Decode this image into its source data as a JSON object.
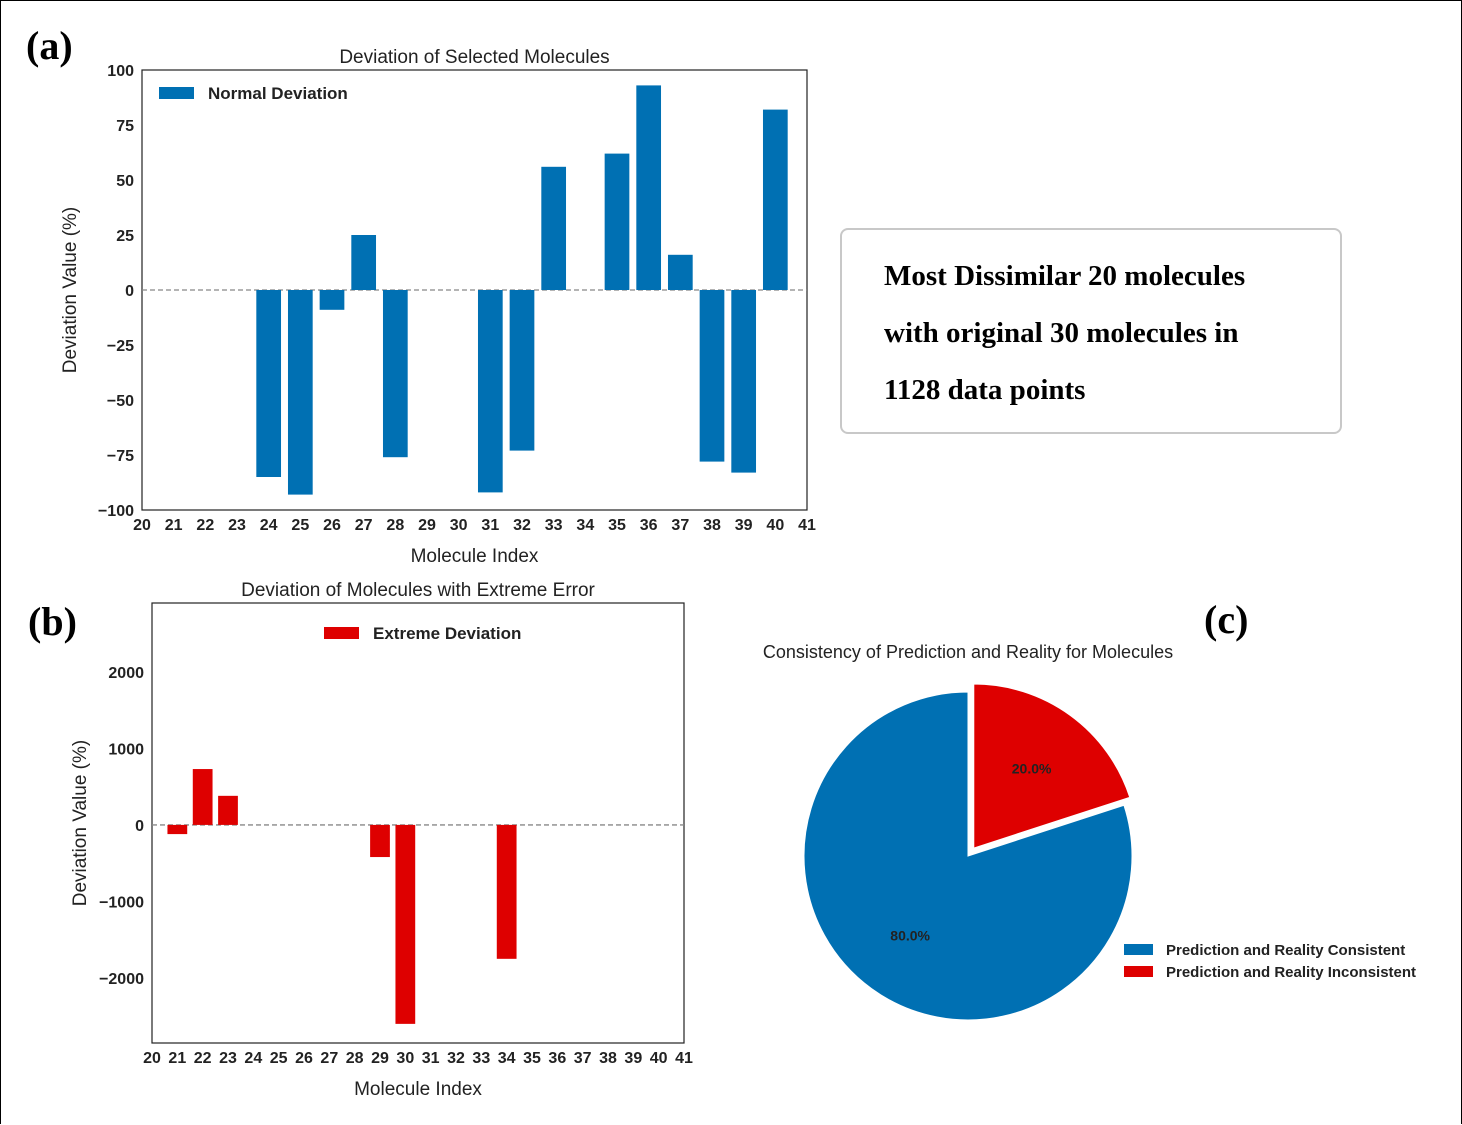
{
  "panels": {
    "a_label": "(a)",
    "b_label": "(b)",
    "c_label": "(c)"
  },
  "note_box": {
    "lines": [
      "Most Dissimilar 20 molecules",
      "with original 30 molecules in",
      "1128 data points"
    ]
  },
  "colors": {
    "normal": "#0070b3",
    "extreme": "#de0000",
    "zero_line": "#888888"
  },
  "chart_data": [
    {
      "type": "bar",
      "title": "Deviation of Selected Molecules",
      "xlabel": "Molecule Index",
      "ylabel": "Deviation Value (%)",
      "ylim": [
        -100,
        100
      ],
      "yticks": [
        "100",
        "75",
        "50",
        "25",
        "0",
        "−25",
        "−50",
        "−75",
        "−100"
      ],
      "ytick_values": [
        100,
        75,
        50,
        25,
        0,
        -25,
        -50,
        -75,
        -100
      ],
      "xticks": [
        "20",
        "21",
        "22",
        "23",
        "24",
        "25",
        "26",
        "27",
        "28",
        "29",
        "30",
        "31",
        "32",
        "33",
        "34",
        "35",
        "36",
        "37",
        "38",
        "39",
        "40",
        "41"
      ],
      "xlim": [
        20,
        41
      ],
      "legend": "top-left",
      "grid": false,
      "series": [
        {
          "name": "Normal Deviation",
          "color": "#0070b3",
          "x": [
            24,
            25,
            26,
            27,
            28,
            31,
            32,
            33,
            35,
            36,
            37,
            38,
            39,
            40
          ],
          "values": [
            -85,
            -93,
            -9,
            25,
            -76,
            -92,
            -73,
            56,
            62,
            93,
            16,
            -78,
            -83,
            82
          ]
        }
      ]
    },
    {
      "type": "bar",
      "title": "Deviation of Molecules with Extreme Error",
      "xlabel": "Molecule Index",
      "ylabel": "Deviation Value (%)",
      "ylim": [
        -2850,
        2900
      ],
      "yticks": [
        "2000",
        "1000",
        "0",
        "−1000",
        "−2000"
      ],
      "ytick_values": [
        2000,
        1000,
        0,
        -1000,
        -2000
      ],
      "xticks": [
        "20",
        "21",
        "22",
        "23",
        "24",
        "25",
        "26",
        "27",
        "28",
        "29",
        "30",
        "31",
        "32",
        "33",
        "34",
        "35",
        "36",
        "37",
        "38",
        "39",
        "40",
        "41"
      ],
      "xlim": [
        20,
        41
      ],
      "legend": "top-center",
      "grid": false,
      "series": [
        {
          "name": "Extreme Deviation",
          "color": "#de0000",
          "x": [
            21,
            22,
            23,
            29,
            30,
            34
          ],
          "values": [
            -120,
            730,
            380,
            -420,
            -2600,
            -1750
          ]
        }
      ]
    },
    {
      "type": "pie",
      "title": "Consistency of Prediction and Reality for Molecules",
      "legend": "bottom-right",
      "slices": [
        {
          "label": "Prediction and Reality Consistent",
          "value": 80.0,
          "pct_label": "80.0%",
          "color": "#0070b3"
        },
        {
          "label": "Prediction and Reality Inconsistent",
          "value": 20.0,
          "pct_label": "20.0%",
          "color": "#de0000",
          "exploded": true
        }
      ]
    }
  ]
}
